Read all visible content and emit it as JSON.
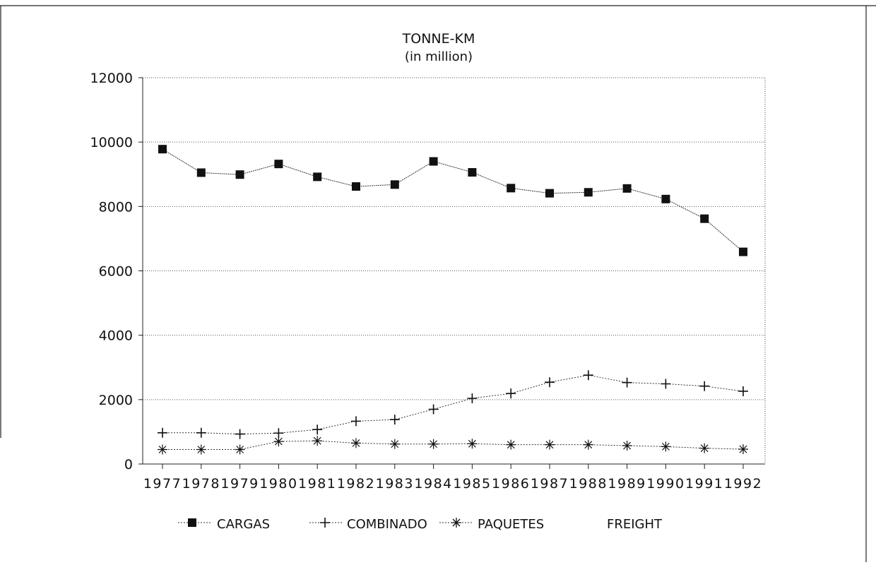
{
  "chart_data": {
    "type": "line",
    "title": "TONNE-KM",
    "subtitle": "(in million)",
    "xlabel": "",
    "ylabel": "",
    "categories": [
      "1977",
      "1978",
      "1979",
      "1980",
      "1981",
      "1982",
      "1983",
      "1984",
      "1985",
      "1986",
      "1987",
      "1988",
      "1989",
      "1990",
      "1991",
      "1992"
    ],
    "ylim": [
      0,
      12000
    ],
    "yticks": [
      0,
      2000,
      4000,
      6000,
      8000,
      10000,
      12000
    ],
    "grid": "horizontal dotted",
    "legend_position": "bottom",
    "series": [
      {
        "name": "CARGAS",
        "marker": "square",
        "values": [
          9780,
          9050,
          8990,
          9320,
          8920,
          8620,
          8680,
          9400,
          9060,
          8570,
          8410,
          8440,
          8560,
          8230,
          7620,
          6590
        ]
      },
      {
        "name": "COMBINADO",
        "marker": "plus",
        "values": [
          970,
          970,
          930,
          960,
          1070,
          1330,
          1380,
          1700,
          2040,
          2190,
          2540,
          2760,
          2530,
          2490,
          2420,
          2260
        ]
      },
      {
        "name": "PAQUETES",
        "marker": "asterisk",
        "values": [
          450,
          450,
          450,
          700,
          720,
          650,
          620,
          620,
          630,
          600,
          600,
          600,
          570,
          540,
          490,
          460
        ]
      }
    ],
    "legend_extra": "FREIGHT"
  }
}
